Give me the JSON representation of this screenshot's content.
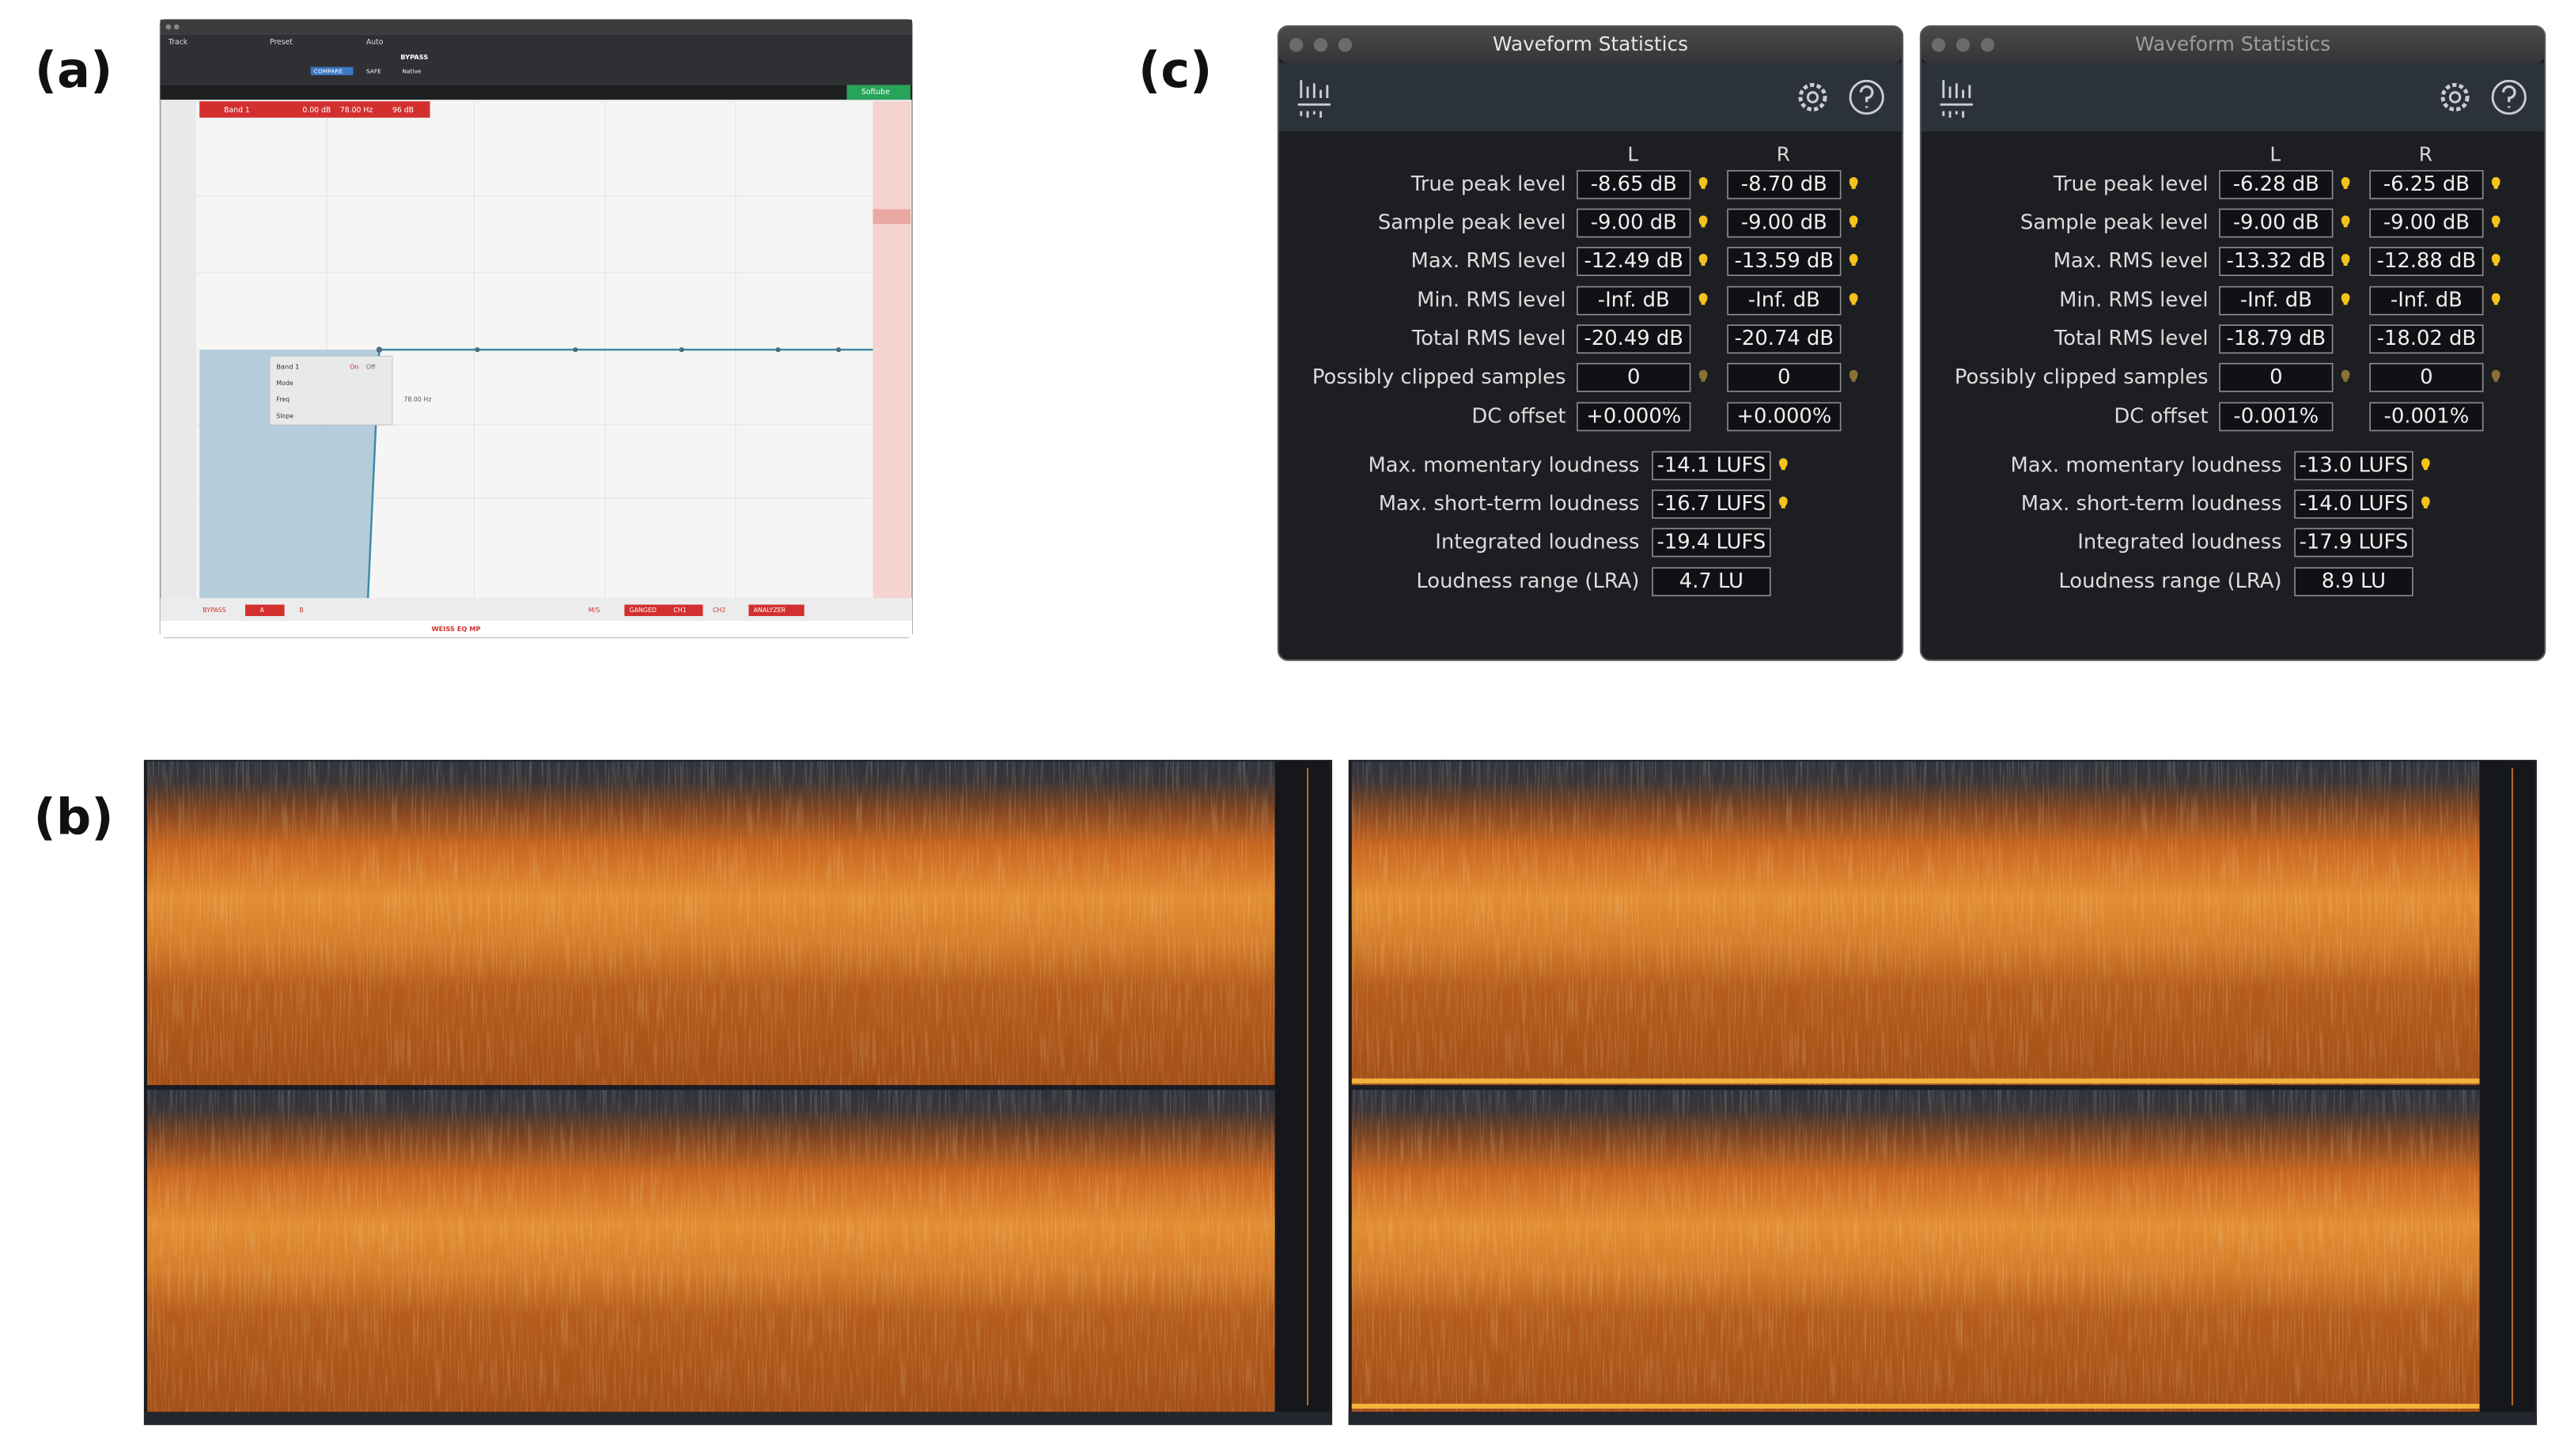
{
  "panel_labels": [
    "(a)",
    "(b)",
    "(c)"
  ],
  "eq_plugin": {
    "toolbar": [
      "Track",
      "Preset",
      "Auto"
    ],
    "bypass": "BYPASS",
    "compare": "COMPARE",
    "safe": "SAFE",
    "native": "Native",
    "brand": "Softube",
    "band_bar": [
      "Band 1",
      "0.00 dB",
      "78.00 Hz",
      "96 dB"
    ],
    "popup": {
      "title": "Band 1",
      "rows": [
        "Mode",
        "Freq",
        "Slope"
      ],
      "on": "On",
      "off": "Off",
      "freq": "78.00 Hz"
    },
    "bottom_buttons": [
      "BYPASS",
      "A",
      "B",
      "M/S",
      "GANGED",
      "CH1",
      "CH2",
      "ANALYZER"
    ],
    "footer": "WEISS EQ MP"
  },
  "waveform_statistics": [
    {
      "title": "Waveform Statistics",
      "columns": [
        "L",
        "R"
      ],
      "rows": [
        {
          "label": "True peak level",
          "L": "-8.65 dB",
          "R": "-8.70 dB"
        },
        {
          "label": "Sample peak level",
          "L": "-9.00 dB",
          "R": "-9.00 dB"
        },
        {
          "label": "Max. RMS level",
          "L": "-12.49 dB",
          "R": "-13.59 dB"
        },
        {
          "label": "Min. RMS level",
          "L": "-Inf. dB",
          "R": "-Inf. dB"
        },
        {
          "label": "Total RMS level",
          "L": "-20.49 dB",
          "R": "-20.74 dB"
        },
        {
          "label": "Possibly clipped samples",
          "L": "0",
          "R": "0"
        },
        {
          "label": "DC offset",
          "L": "+0.000%",
          "R": "+0.000%"
        }
      ],
      "loudness": [
        {
          "label": "Max. momentary loudness",
          "value": "-14.1 LUFS"
        },
        {
          "label": "Max. short-term loudness",
          "value": "-16.7 LUFS"
        },
        {
          "label": "Integrated loudness",
          "value": "-19.4 LUFS"
        },
        {
          "label": "Loudness range (LRA)",
          "value": "4.7 LU"
        }
      ]
    },
    {
      "title": "Waveform Statistics",
      "columns": [
        "L",
        "R"
      ],
      "rows": [
        {
          "label": "True peak level",
          "L": "-6.28 dB",
          "R": "-6.25 dB"
        },
        {
          "label": "Sample peak level",
          "L": "-9.00 dB",
          "R": "-9.00 dB"
        },
        {
          "label": "Max. RMS level",
          "L": "-13.32 dB",
          "R": "-12.88 dB"
        },
        {
          "label": "Min. RMS level",
          "L": "-Inf. dB",
          "R": "-Inf. dB"
        },
        {
          "label": "Total RMS level",
          "L": "-18.79 dB",
          "R": "-18.02 dB"
        },
        {
          "label": "Possibly clipped samples",
          "L": "0",
          "R": "0"
        },
        {
          "label": "DC offset",
          "L": "-0.001%",
          "R": "-0.001%"
        }
      ],
      "loudness": [
        {
          "label": "Max. momentary loudness",
          "value": "-13.0 LUFS"
        },
        {
          "label": "Max. short-term loudness",
          "value": "-14.0 LUFS"
        },
        {
          "label": "Integrated loudness",
          "value": "-17.9 LUFS"
        },
        {
          "label": "Loudness range (LRA)",
          "value": "8.9 LU"
        }
      ]
    }
  ]
}
